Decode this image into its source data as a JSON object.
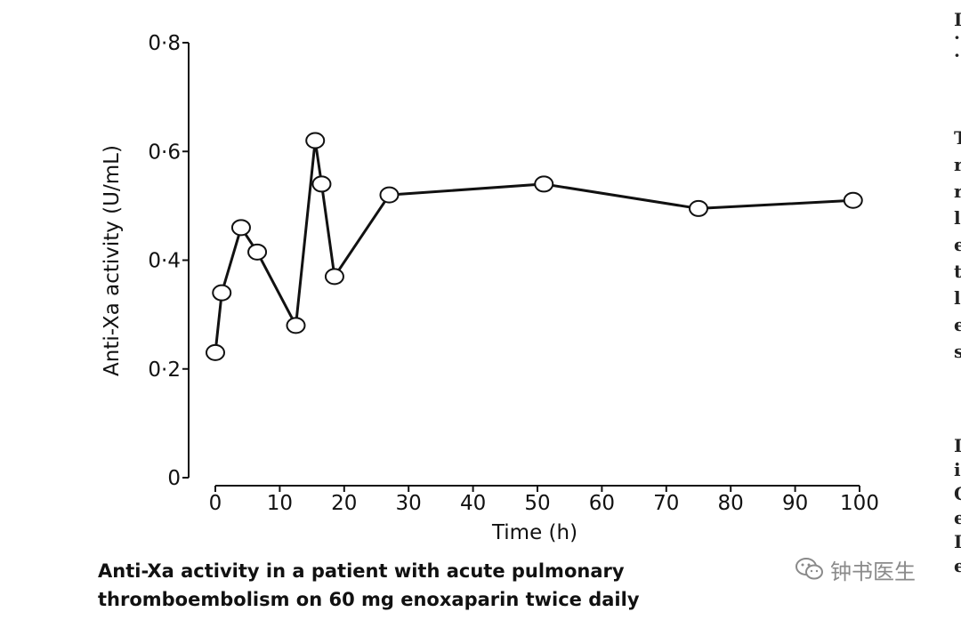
{
  "chart_data": {
    "type": "line",
    "title": "",
    "xlabel": "Time (h)",
    "ylabel": "Anti-Xa activity (U/mL)",
    "xlim": [
      0,
      100
    ],
    "ylim": [
      0,
      0.8
    ],
    "x_ticks": [
      0,
      10,
      20,
      30,
      40,
      50,
      60,
      70,
      80,
      90,
      100
    ],
    "x_tick_labels": [
      "0",
      "10",
      "20",
      "30",
      "40",
      "50",
      "60",
      "70",
      "80",
      "90",
      "100"
    ],
    "y_ticks": [
      0,
      0.2,
      0.4,
      0.6,
      0.8
    ],
    "y_tick_labels": [
      "0",
      "0·2",
      "0·4",
      "0·6",
      "0·8"
    ],
    "grid": false,
    "marker": "open-circle",
    "series": [
      {
        "x": [
          0,
          1,
          4,
          6.5,
          12.5,
          15.5,
          16.5,
          18.5,
          27,
          51,
          75,
          99
        ],
        "y": [
          0.23,
          0.34,
          0.46,
          0.415,
          0.28,
          0.62,
          0.54,
          0.37,
          0.52,
          0.54,
          0.495,
          0.51
        ]
      }
    ]
  },
  "caption": {
    "line1": "Anti-Xa activity in a patient with acute pulmonary",
    "line2": "thromboembolism on 60 mg enoxaparin twice daily"
  },
  "watermark": {
    "text": "钟书医生",
    "icon": "wechat-icon"
  },
  "edge_text": {
    "top_chars": [
      "I",
      "·",
      "·"
    ],
    "column_chars": [
      "T",
      "r",
      "r",
      "l",
      "e",
      "t",
      "l",
      "e",
      "s"
    ],
    "lower_chars": [
      "I",
      "i",
      "C",
      "e",
      "I",
      "e"
    ]
  },
  "colors": {
    "line": "#111111",
    "marker_fill": "#ffffff",
    "text": "#111111",
    "watermark": "#8a8a8a"
  }
}
